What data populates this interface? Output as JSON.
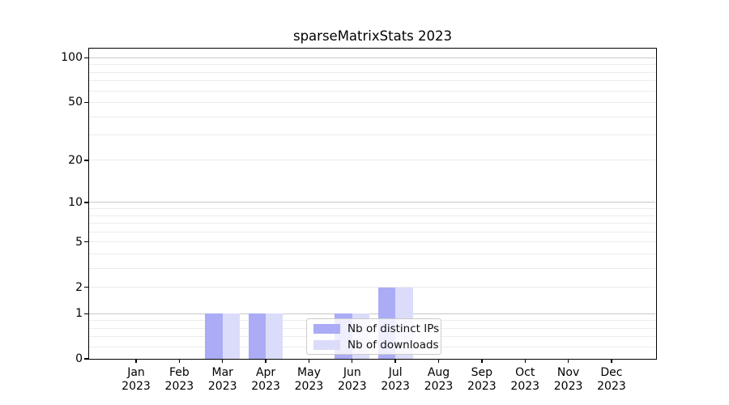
{
  "figure": {
    "title": "sparseMatrixStats 2023"
  },
  "chart_data": {
    "type": "bar",
    "title": "sparseMatrixStats 2023",
    "categories": [
      "Jan 2023",
      "Feb 2023",
      "Mar 2023",
      "Apr 2023",
      "May 2023",
      "Jun 2023",
      "Jul 2023",
      "Aug 2023",
      "Sep 2023",
      "Oct 2023",
      "Nov 2023",
      "Dec 2023"
    ],
    "x_ticks": [
      {
        "month": "Jan",
        "year": "2023"
      },
      {
        "month": "Feb",
        "year": "2023"
      },
      {
        "month": "Mar",
        "year": "2023"
      },
      {
        "month": "Apr",
        "year": "2023"
      },
      {
        "month": "May",
        "year": "2023"
      },
      {
        "month": "Jun",
        "year": "2023"
      },
      {
        "month": "Jul",
        "year": "2023"
      },
      {
        "month": "Aug",
        "year": "2023"
      },
      {
        "month": "Sep",
        "year": "2023"
      },
      {
        "month": "Oct",
        "year": "2023"
      },
      {
        "month": "Nov",
        "year": "2023"
      },
      {
        "month": "Dec",
        "year": "2023"
      }
    ],
    "series": [
      {
        "name": "Nb of distinct IPs",
        "color": "#abacf5",
        "values": [
          0,
          0,
          1,
          1,
          0,
          1,
          2,
          0,
          0,
          0,
          0,
          0
        ]
      },
      {
        "name": "Nb of downloads",
        "color": "#dbdcf9",
        "values": [
          0,
          0,
          1,
          1,
          0,
          1,
          2,
          0,
          0,
          0,
          0,
          0
        ]
      }
    ],
    "xlabel": "",
    "ylabel": "",
    "yscale": "log1p",
    "ylim": [
      0,
      115
    ],
    "y_ticks": [
      {
        "value": 0,
        "label": "0"
      },
      {
        "value": 1,
        "label": "1"
      },
      {
        "value": 2,
        "label": "2"
      },
      {
        "value": 5,
        "label": "5"
      },
      {
        "value": 10,
        "label": "10"
      },
      {
        "value": 20,
        "label": "20"
      },
      {
        "value": 50,
        "label": "50"
      },
      {
        "value": 100,
        "label": "100"
      }
    ],
    "y_major_gridlines": [
      1,
      10,
      100
    ],
    "y_minor_gridlines": [
      0.2,
      0.4,
      0.6,
      0.8,
      2,
      3,
      4,
      5,
      6,
      7,
      8,
      9,
      20,
      30,
      40,
      50,
      60,
      70,
      80,
      90
    ],
    "grid": true,
    "legend": {
      "position": "inside-bottom-center",
      "labels": [
        "Nb of distinct IPs",
        "Nb of downloads"
      ]
    },
    "colors": {
      "major_grid": "#c9c9c9",
      "minor_grid": "#ececec",
      "axis": "#000000",
      "background": "#ffffff"
    }
  }
}
